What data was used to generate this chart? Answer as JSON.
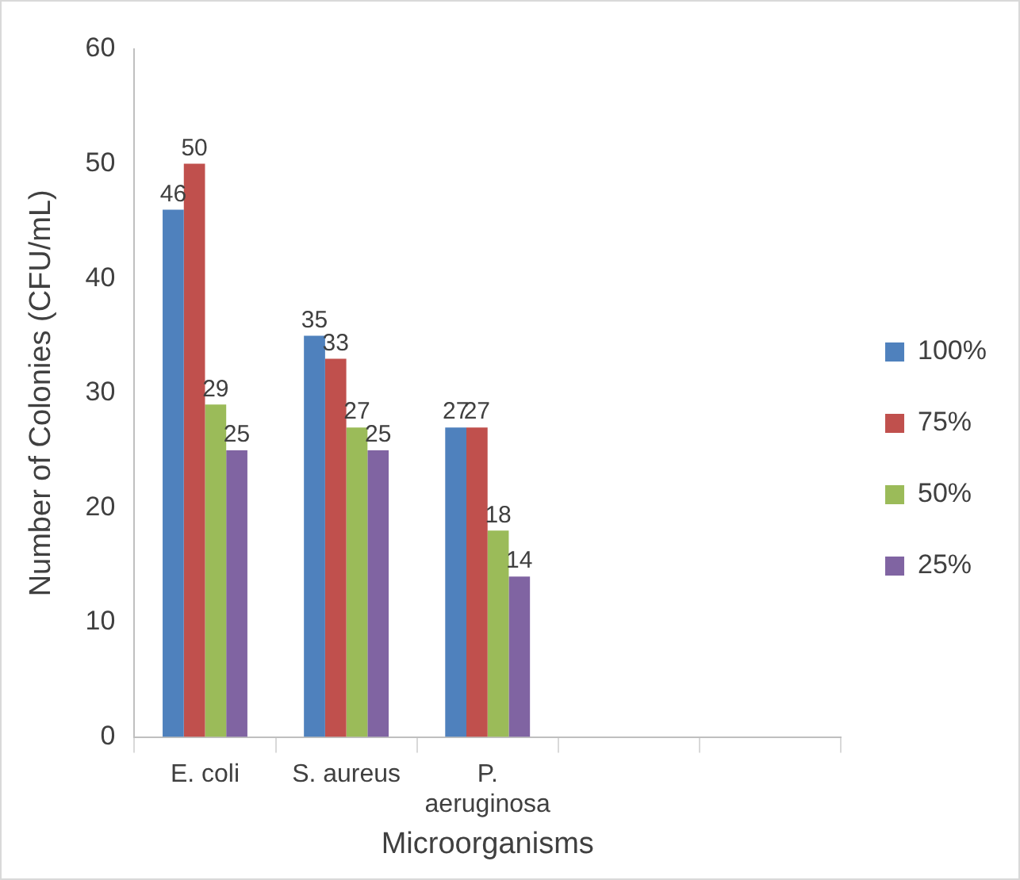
{
  "chart_data": {
    "type": "bar",
    "xlabel": "Microorganisms",
    "ylabel": "Number of Colonies (CFU/mL)",
    "categories": [
      "E. coli",
      "S. aureus",
      "P. aeruginosa",
      null,
      null
    ],
    "series": [
      {
        "name": "100%",
        "color": "#4f81bd",
        "values": [
          46,
          35,
          27,
          null,
          null
        ]
      },
      {
        "name": "75%",
        "color": "#c0504d",
        "values": [
          50,
          33,
          27,
          null,
          null
        ]
      },
      {
        "name": "50%",
        "color": "#9bbb59",
        "values": [
          29,
          27,
          18,
          null,
          null
        ]
      },
      {
        "name": "25%",
        "color": "#8064a2",
        "values": [
          25,
          25,
          14,
          null,
          null
        ]
      }
    ],
    "ylim": [
      0,
      60
    ],
    "yticks": [
      0,
      10,
      20,
      30,
      40,
      50,
      60
    ],
    "grid": false,
    "legend": "right",
    "data_labels": true
  }
}
